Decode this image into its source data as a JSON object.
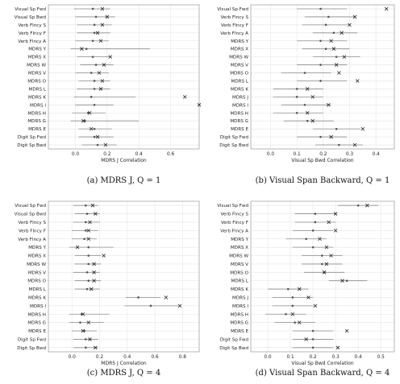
{
  "figure": {
    "captions": [
      "(a) MDRS J, Q = 1",
      "(b) Visual Span Backward, Q = 1",
      "(c) MDRS J, Q = 4",
      "(d) Visual Span Backward, Q = 4"
    ]
  },
  "chart_data": [
    {
      "type": "scatter",
      "subtype": "interval-dot-plot",
      "caption": "(a) MDRS J, Q = 1",
      "xlabel": "MDRS J Correlation",
      "xlim": [
        -0.17,
        0.78
      ],
      "xticks": [
        "0.0",
        "0.2",
        "0.4",
        "0.6"
      ],
      "xtick_values": [
        0.0,
        0.2,
        0.4,
        0.6
      ],
      "grid": true,
      "categories": [
        "Visual Sp Fwd",
        "Visual Sp Bwd",
        "Verb Flncy S",
        "Verb Flncy F",
        "Verb Flncy A",
        "MDRS Y",
        "MDRS X",
        "MDRS W",
        "MDRS V",
        "MDRS O",
        "MDRS L",
        "MDRS K",
        "MDRS I",
        "MDRS H",
        "MDRS G",
        "MDRS E",
        "Digit Sp Fwd",
        "Digit Sp Bwd"
      ],
      "point": [
        0.11,
        0.13,
        0.12,
        0.12,
        0.11,
        0.07,
        0.11,
        0.13,
        0.1,
        0.12,
        0.12,
        0.1,
        0.12,
        0.08,
        0.06,
        0.12,
        0.12,
        0.14
      ],
      "lower": [
        -0.01,
        0.0,
        0.01,
        0.01,
        0.0,
        -0.03,
        0.01,
        0.03,
        0.0,
        0.02,
        0.01,
        -0.01,
        0.0,
        -0.02,
        -0.03,
        0.02,
        0.02,
        0.04
      ],
      "upper": [
        0.22,
        0.25,
        0.23,
        0.22,
        0.21,
        0.47,
        0.22,
        0.24,
        0.21,
        0.22,
        0.22,
        0.38,
        0.24,
        0.19,
        0.4,
        0.23,
        0.24,
        0.26
      ],
      "x_marker": [
        0.17,
        0.2,
        0.17,
        0.14,
        0.16,
        0.04,
        0.22,
        0.18,
        0.15,
        0.17,
        0.16,
        0.69,
        0.78,
        0.09,
        0.05,
        0.1,
        0.14,
        0.19
      ]
    },
    {
      "type": "scatter",
      "subtype": "interval-dot-plot",
      "caption": "(b) Visual Span Backward, Q = 1",
      "xlabel": "Visual Sp Bwd Correlation",
      "xlim": [
        -0.075,
        0.47
      ],
      "xticks": [
        "0.0",
        "0.1",
        "0.2",
        "0.3",
        "0.4"
      ],
      "xtick_values": [
        0.0,
        0.1,
        0.2,
        0.3,
        0.4
      ],
      "grid": true,
      "categories": [
        "Visual Sp Fwd",
        "Verb Flncy S",
        "Verb Flncy F",
        "Verb Flncy A",
        "MDRS Y",
        "MDRS X",
        "MDRS W",
        "MDRS V",
        "MDRS O",
        "MDRS L",
        "MDRS K",
        "MDRS J",
        "MDRS I",
        "MDRS H",
        "MDRS G",
        "MDRS E",
        "Digit Sp Fwd",
        "Digit Sp Bwd"
      ],
      "point": [
        0.19,
        0.22,
        0.21,
        0.24,
        0.19,
        0.21,
        0.25,
        0.19,
        0.13,
        0.19,
        0.1,
        0.1,
        0.13,
        0.1,
        0.14,
        0.25,
        0.19,
        0.26
      ],
      "lower": [
        0.1,
        0.13,
        0.12,
        0.16,
        0.1,
        0.12,
        0.16,
        0.1,
        0.04,
        0.1,
        0.01,
        0.01,
        0.04,
        0.01,
        0.05,
        0.16,
        0.1,
        0.17
      ],
      "upper": [
        0.29,
        0.32,
        0.3,
        0.33,
        0.29,
        0.3,
        0.34,
        0.29,
        0.23,
        0.29,
        0.2,
        0.2,
        0.23,
        0.2,
        0.24,
        0.34,
        0.29,
        0.35
      ],
      "x_marker": [
        0.44,
        0.32,
        0.3,
        0.27,
        0.23,
        0.24,
        0.28,
        0.25,
        0.26,
        0.33,
        0.14,
        0.16,
        0.22,
        0.14,
        0.16,
        0.35,
        0.23,
        0.32
      ]
    },
    {
      "type": "scatter",
      "subtype": "interval-dot-plot",
      "caption": "(c) MDRS J, Q = 4",
      "xlabel": "MDRS J Correlation",
      "xlim": [
        -0.17,
        0.92
      ],
      "xticks": [
        "0.0",
        "0.2",
        "0.4",
        "0.6",
        "0.8"
      ],
      "xtick_values": [
        0.0,
        0.2,
        0.4,
        0.6,
        0.8
      ],
      "grid": true,
      "categories": [
        "Visual Sp Fwd",
        "Visual Sp Bwd",
        "Verb Flncy S",
        "Verb Flncy F",
        "Verb Flncy A",
        "MDRS Y",
        "MDRS X",
        "MDRS W",
        "MDRS V",
        "MDRS O",
        "MDRS L",
        "MDRS K",
        "MDRS I",
        "MDRS H",
        "MDRS G",
        "MDRS E",
        "Digit Sp Fwd",
        "Digit Sp Bwd"
      ],
      "point": [
        0.1,
        0.11,
        0.1,
        0.1,
        0.09,
        0.12,
        0.12,
        0.12,
        0.11,
        0.12,
        0.11,
        0.48,
        0.57,
        0.07,
        0.06,
        0.09,
        0.1,
        0.1
      ],
      "lower": [
        0.01,
        0.02,
        0.01,
        0.0,
        0.0,
        -0.02,
        0.02,
        0.02,
        0.01,
        0.02,
        0.02,
        0.39,
        0.38,
        -0.02,
        -0.02,
        0.0,
        0.01,
        0.01
      ],
      "upper": [
        0.19,
        0.2,
        0.2,
        0.19,
        0.18,
        0.3,
        0.21,
        0.21,
        0.2,
        0.21,
        0.2,
        0.64,
        0.77,
        0.27,
        0.23,
        0.18,
        0.19,
        0.19
      ],
      "x_marker": [
        0.15,
        0.17,
        0.13,
        0.12,
        0.12,
        0.04,
        0.23,
        0.16,
        0.16,
        0.16,
        0.14,
        0.68,
        0.78,
        0.08,
        0.12,
        0.08,
        0.13,
        0.17
      ]
    },
    {
      "type": "scatter",
      "subtype": "interval-dot-plot",
      "caption": "(d) Visual Span Backward, Q = 4",
      "xlabel": "Visual Sp Bwd Correlation",
      "xlim": [
        -0.075,
        0.56
      ],
      "xticks": [
        "0.0",
        "0.1",
        "0.2",
        "0.3",
        "0.4",
        "0.5"
      ],
      "xtick_values": [
        0.0,
        0.1,
        0.2,
        0.3,
        0.4,
        0.5
      ],
      "grid": true,
      "categories": [
        "Visual Sp Fwd",
        "Verb Flncy S",
        "Verb Flncy F",
        "Verb Flncy A",
        "MDRS Y",
        "MDRS X",
        "MDRS W",
        "MDRS V",
        "MDRS O",
        "MDRS L",
        "MDRS K",
        "MDRS J",
        "MDRS I",
        "MDRS H",
        "MDRS G",
        "MDRS E",
        "Digit Sp Fwd",
        "Digit Sp Bwd"
      ],
      "point": [
        0.4,
        0.21,
        0.21,
        0.2,
        0.17,
        0.2,
        0.24,
        0.24,
        0.25,
        0.35,
        0.09,
        0.11,
        0.11,
        0.08,
        0.12,
        0.2,
        0.2,
        0.2
      ],
      "lower": [
        0.31,
        0.12,
        0.12,
        0.11,
        0.08,
        0.11,
        0.15,
        0.15,
        0.16,
        0.27,
        0.0,
        0.02,
        0.02,
        -0.01,
        0.03,
        0.11,
        0.11,
        0.11
      ],
      "upper": [
        0.49,
        0.3,
        0.3,
        0.29,
        0.26,
        0.29,
        0.33,
        0.33,
        0.34,
        0.44,
        0.18,
        0.2,
        0.2,
        0.17,
        0.21,
        0.29,
        0.29,
        0.29
      ],
      "x_marker": [
        0.44,
        0.3,
        0.27,
        0.3,
        0.23,
        0.26,
        0.28,
        0.26,
        0.25,
        0.33,
        0.14,
        0.18,
        0.21,
        0.11,
        0.14,
        0.35,
        0.17,
        0.31
      ]
    }
  ]
}
